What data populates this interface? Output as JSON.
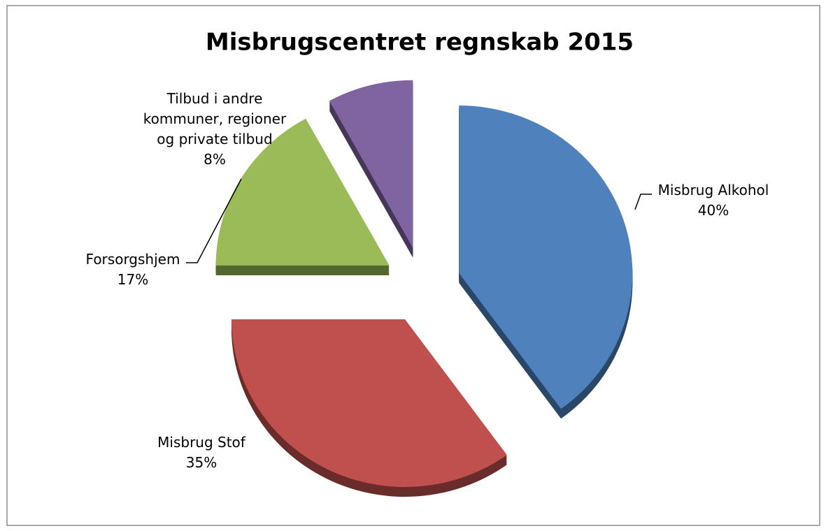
{
  "chart_data": {
    "type": "pie",
    "title": "Misbrugscentret regnskab 2015",
    "categories": [
      "Misbrug Alkohol",
      "Misbrug Stof",
      "Forsorgshjem",
      "Tilbud i andre kommuner, regioner og private tilbud"
    ],
    "values": [
      40,
      35,
      17,
      8
    ],
    "value_labels": [
      "40%",
      "35%",
      "17%",
      "8%"
    ],
    "colors": [
      "#4f81bd",
      "#c0504d",
      "#9bbb59",
      "#8064a2"
    ]
  }
}
